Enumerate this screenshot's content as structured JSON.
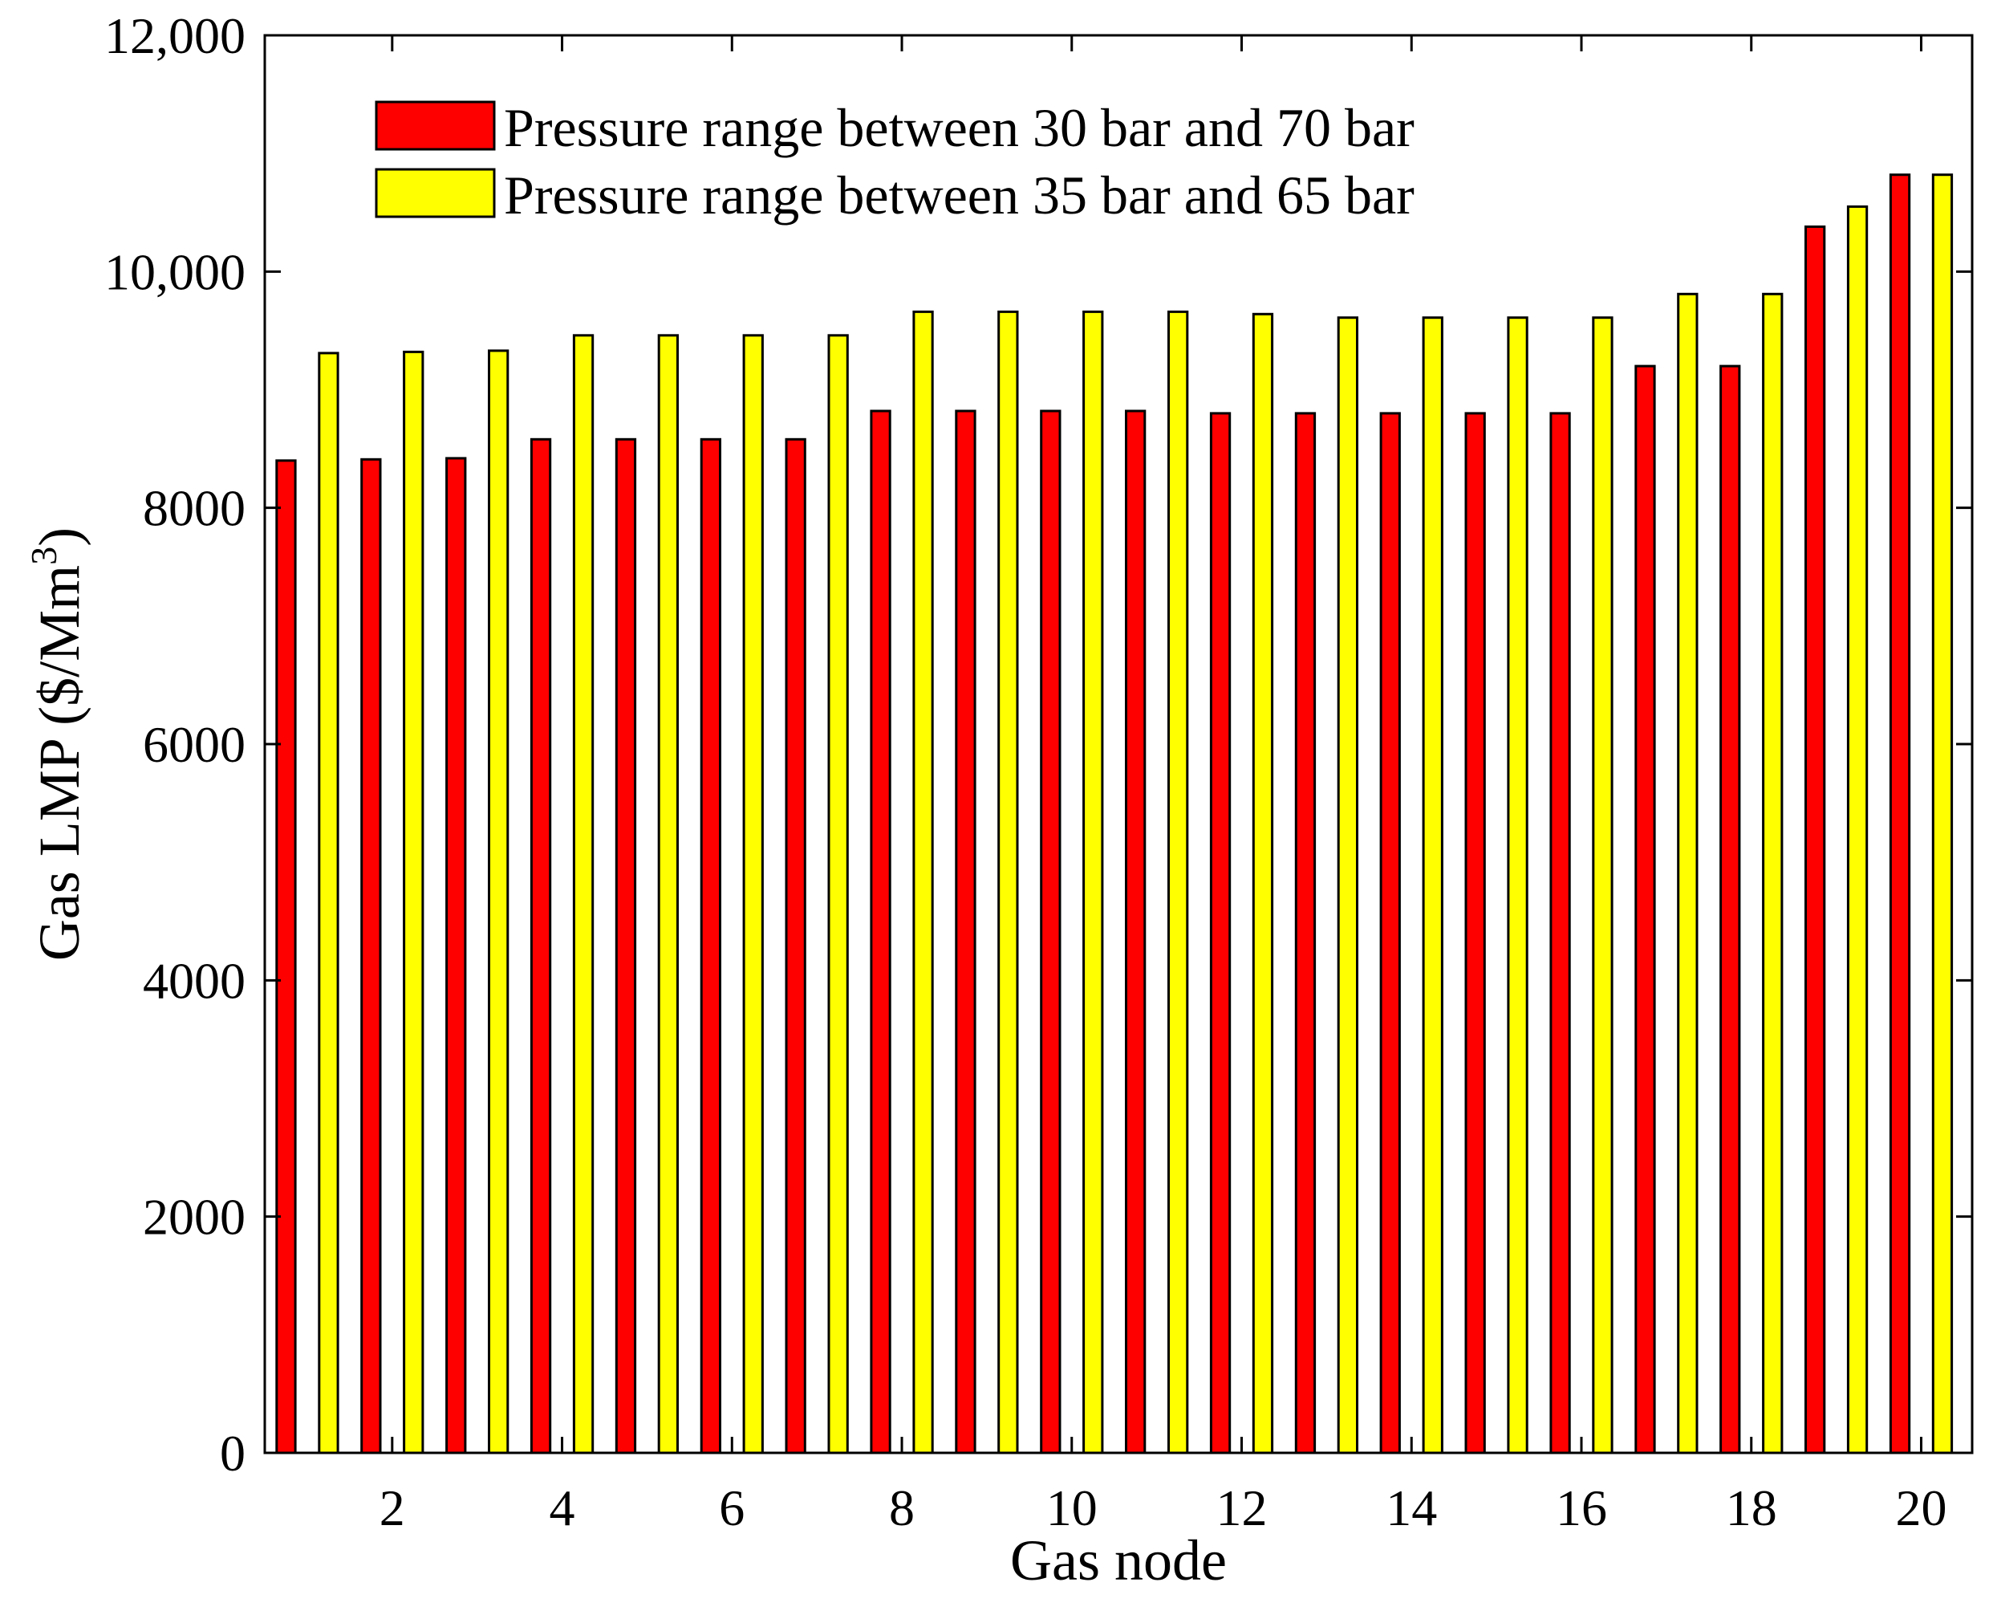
{
  "chart_data": {
    "type": "bar",
    "title": "",
    "xlabel": "Gas node",
    "ylabel": "Gas LMP ($/Mm",
    "ylabel_superscript": "3",
    "ylabel_suffix": ")",
    "categories": [
      1,
      2,
      3,
      4,
      5,
      6,
      7,
      8,
      9,
      10,
      11,
      12,
      13,
      14,
      15,
      16,
      17,
      18,
      19,
      20
    ],
    "xlim": [
      0.5,
      20.6
    ],
    "x_ticks": [
      2,
      4,
      6,
      8,
      10,
      12,
      14,
      16,
      18,
      20
    ],
    "x_tick_labels": [
      "2",
      "4",
      "6",
      "8",
      "10",
      "12",
      "14",
      "16",
      "18",
      "20"
    ],
    "ylim": [
      0,
      12000
    ],
    "y_ticks": [
      0,
      2000,
      4000,
      6000,
      8000,
      10000,
      12000
    ],
    "y_tick_labels": [
      "0",
      "2000",
      "4000",
      "6000",
      "8000",
      "10,000",
      "12,000"
    ],
    "legend_position": "top-left",
    "grid": false,
    "series": [
      {
        "name": "Pressure range between 30 bar and 70 bar",
        "color": "#ff0000",
        "values": [
          8400,
          8410,
          8420,
          8580,
          8580,
          8580,
          8580,
          8820,
          8820,
          8820,
          8820,
          8800,
          8800,
          8800,
          8800,
          8800,
          9200,
          9200,
          10380,
          10820
        ]
      },
      {
        "name": "Pressure range between 35 bar and 65 bar",
        "color": "#ffff00",
        "values": [
          9310,
          9320,
          9330,
          9460,
          9460,
          9460,
          9460,
          9660,
          9660,
          9660,
          9660,
          9640,
          9610,
          9610,
          9610,
          9610,
          9810,
          9810,
          10550,
          10820
        ]
      }
    ]
  }
}
